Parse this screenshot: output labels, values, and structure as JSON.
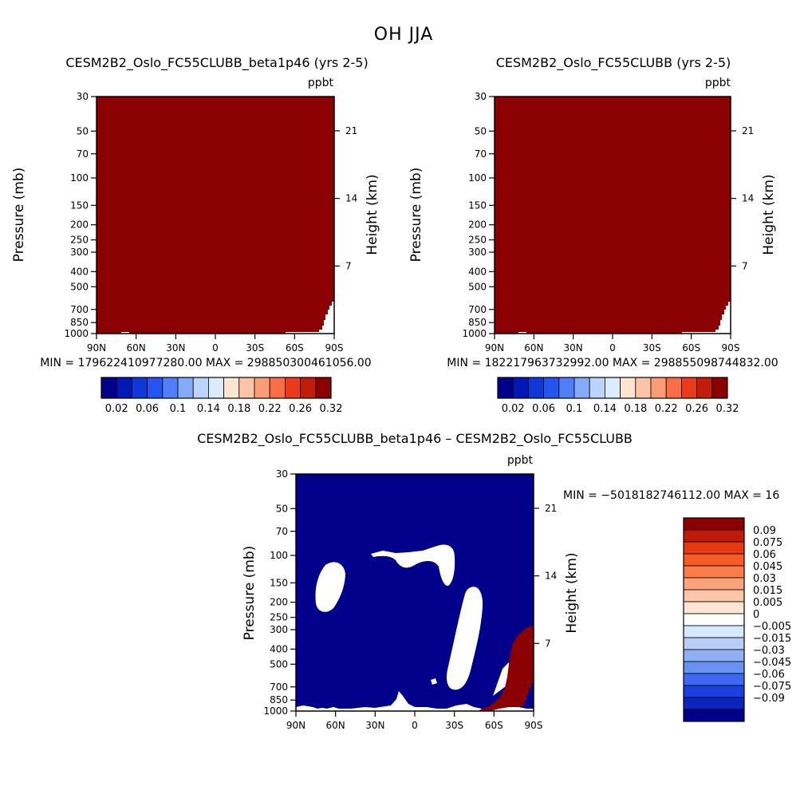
{
  "title": "OH JJA",
  "colors": {
    "dark_red": "#8b0000",
    "dark_blue": "#00008b",
    "white": "#ffffff"
  },
  "abs_scale": {
    "colors": [
      "#00008b",
      "#0018b4",
      "#1038d8",
      "#2455f0",
      "#4e7ff8",
      "#86aaf8",
      "#bcd3fc",
      "#dcebfd",
      "#fde5d2",
      "#fcc3a6",
      "#fc9c77",
      "#fb6d47",
      "#ea3a1a",
      "#c21c0a",
      "#8b0000"
    ],
    "tick_labels": [
      "0.02",
      "0.06",
      "0.1",
      "0.14",
      "0.18",
      "0.22",
      "0.26",
      "0.32"
    ]
  },
  "diff_scale": {
    "colors": [
      "#8b0000",
      "#c01a08",
      "#e83814",
      "#f85a28",
      "#fb7c48",
      "#fca27c",
      "#fdc5a8",
      "#fde6d6",
      "#ffffff",
      "#d6e8fc",
      "#b8cef8",
      "#90b0f6",
      "#6a90f4",
      "#3f68f2",
      "#1a40e0",
      "#0c24c0",
      "#00008b"
    ],
    "labels": [
      "0.09",
      "0.075",
      "0.06",
      "0.045",
      "0.03",
      "0.015",
      "0.005",
      "0",
      "-0.005",
      "-0.015",
      "-0.03",
      "-0.045",
      "-0.06",
      "-0.075",
      "-0.09"
    ]
  },
  "chart_data": [
    {
      "type": "heatmap",
      "title": "CESM2B2_Oslo_FC55CLUBB_beta1p46 (yrs 2-5)",
      "units": "ppbt",
      "ylabel": "Pressure (mb)",
      "ylabel_right": "Height (km)",
      "x_ticks": [
        "90N",
        "60N",
        "30N",
        "0",
        "30S",
        "60S",
        "90S"
      ],
      "y_ticks": [
        "30",
        "50",
        "70",
        "100",
        "150",
        "200",
        "250",
        "300",
        "400",
        "500",
        "700",
        "850",
        "1000"
      ],
      "y_ticks_right": [
        "21",
        "14",
        "7"
      ],
      "min_max_text": "MIN = 179622410977280.00   MAX = 298850300461056.00",
      "fill": "dark red everywhere"
    },
    {
      "type": "heatmap",
      "title": "CESM2B2_Oslo_FC55CLUBB (yrs 2-5)",
      "units": "ppbt",
      "ylabel": "Pressure (mb)",
      "ylabel_right": "Height (km)",
      "x_ticks": [
        "90N",
        "60N",
        "30N",
        "0",
        "30S",
        "60S",
        "90S"
      ],
      "y_ticks": [
        "30",
        "50",
        "70",
        "100",
        "150",
        "200",
        "250",
        "300",
        "400",
        "500",
        "700",
        "850",
        "1000"
      ],
      "y_ticks_right": [
        "21",
        "14",
        "7"
      ],
      "min_max_text": "MIN = 182217963732992.00   MAX = 298855098744832.00",
      "fill": "dark red everywhere"
    },
    {
      "type": "heatmap",
      "title": "CESM2B2_Oslo_FC55CLUBB_beta1p46 – CESM2B2_Oslo_FC55CLUBB",
      "units": "ppbt",
      "ylabel": "Pressure (mb)",
      "ylabel_right": "Height (km)",
      "x_ticks": [
        "90N",
        "60N",
        "30N",
        "0",
        "30S",
        "60S",
        "90S"
      ],
      "y_ticks": [
        "30",
        "50",
        "70",
        "100",
        "150",
        "200",
        "250",
        "300",
        "400",
        "500",
        "700",
        "850",
        "1000"
      ],
      "y_ticks_right": [
        "21",
        "14",
        "7"
      ],
      "min_max_text": "MIN = −5018182746112.00   MAX = 16",
      "fill": "dark blue with white patches; dark red region near 75S-90S, 300-1000 mb"
    }
  ]
}
